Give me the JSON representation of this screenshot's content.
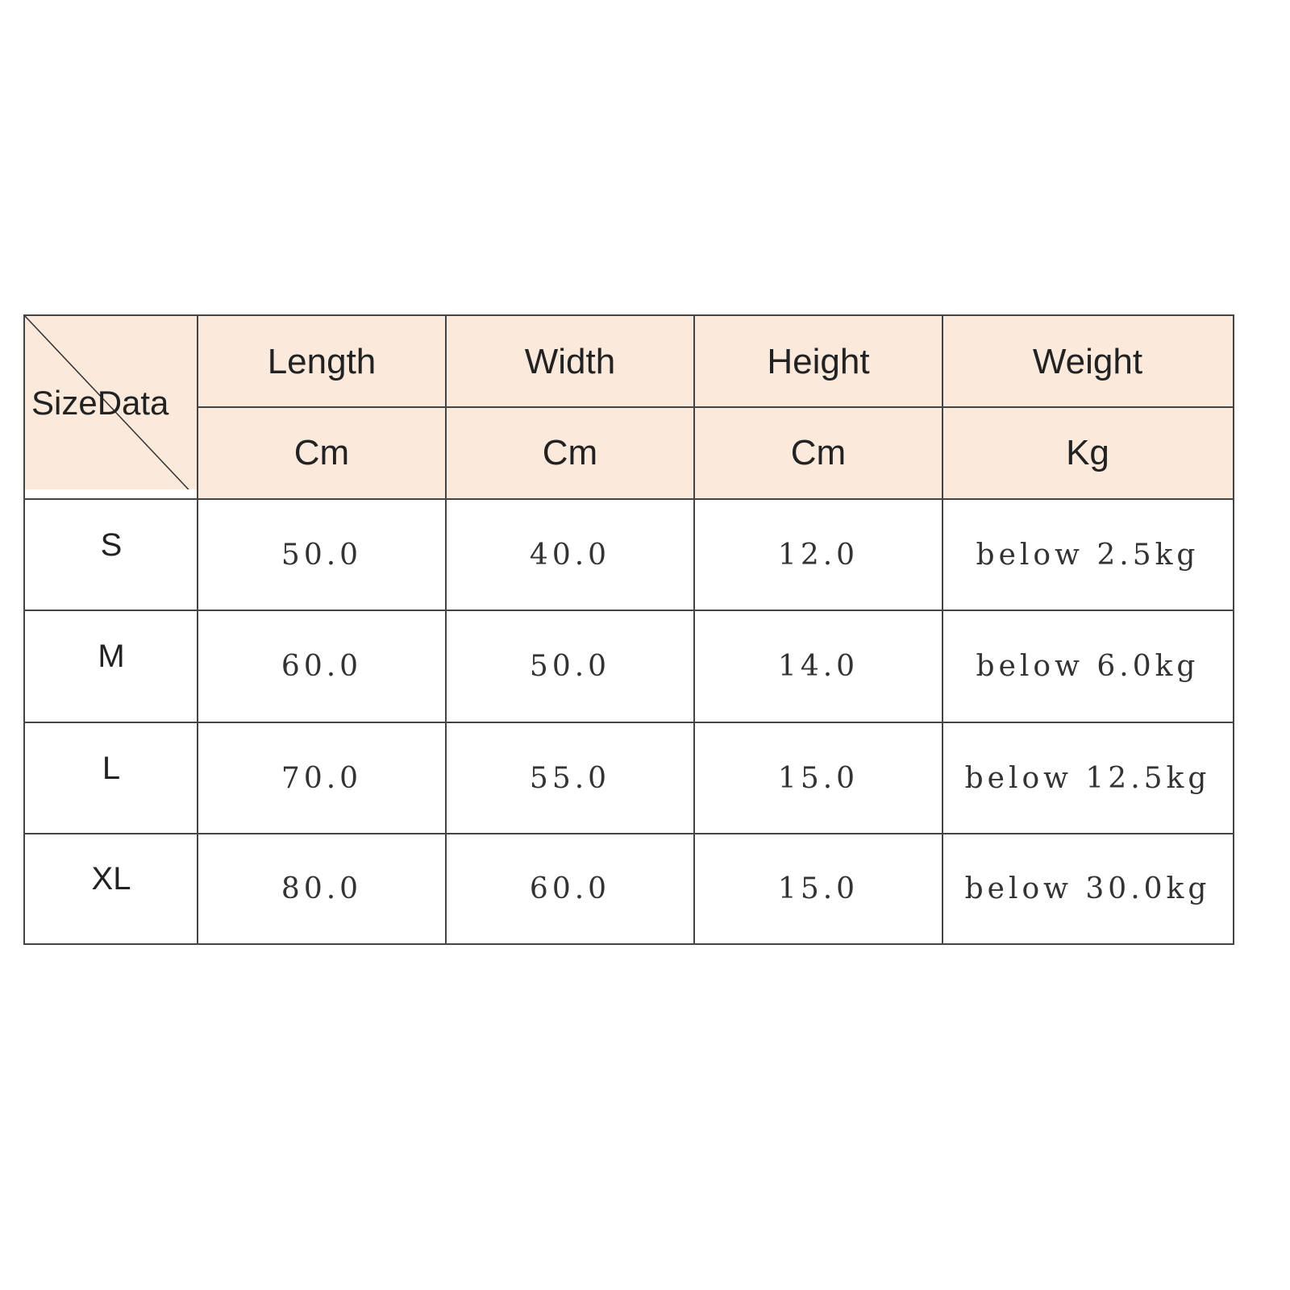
{
  "corner_label": "SizeData",
  "columns": [
    {
      "name": "Length",
      "unit": "Cm"
    },
    {
      "name": "Width",
      "unit": "Cm"
    },
    {
      "name": "Height",
      "unit": "Cm"
    },
    {
      "name": "Weight",
      "unit": "Kg"
    }
  ],
  "rows": [
    {
      "size": "S",
      "length": "50.0",
      "width": "40.0",
      "height": "12.0",
      "weight": "below 2.5kg"
    },
    {
      "size": "M",
      "length": "60.0",
      "width": "50.0",
      "height": "14.0",
      "weight": "below 6.0kg"
    },
    {
      "size": "L",
      "length": "70.0",
      "width": "55.0",
      "height": "15.0",
      "weight": "below 12.5kg"
    },
    {
      "size": "XL",
      "length": "80.0",
      "width": "60.0",
      "height": "15.0",
      "weight": "below 30.0kg"
    }
  ],
  "colors": {
    "header_bg": "#fbe9dc",
    "border": "#444444"
  }
}
